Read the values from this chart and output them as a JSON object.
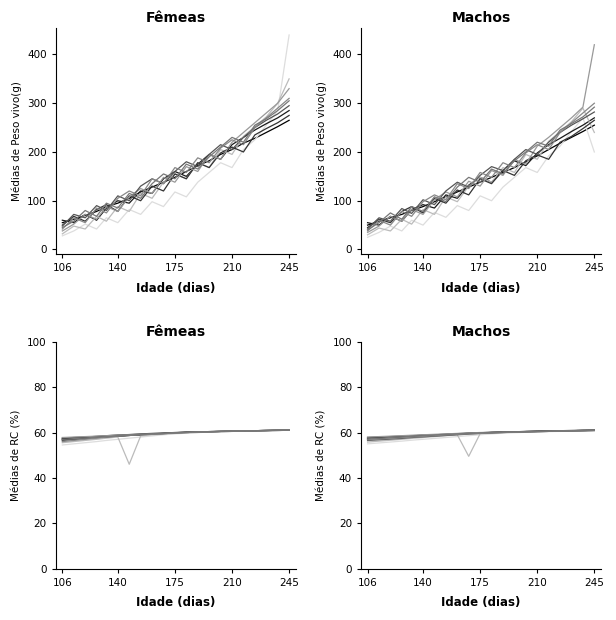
{
  "x_ticks": [
    106,
    140,
    175,
    210,
    245
  ],
  "titles_top": [
    "Fêmeas",
    "Machos"
  ],
  "titles_bottom": [
    "Fêmeas",
    "Machos"
  ],
  "ylabel_weight": "Médias de Peso vivo(g)",
  "ylabel_rc": "Médias de RC (%)",
  "xlabel": "Idade (dias)",
  "weight_yticks": [
    0,
    100,
    200,
    300,
    400
  ],
  "rc_yticks": [
    0,
    20,
    40,
    60,
    80,
    100
  ],
  "x_pts": [
    106,
    113,
    120,
    127,
    133,
    140,
    147,
    154,
    161,
    168,
    175,
    182,
    189,
    196,
    203,
    210,
    217,
    224,
    231,
    238,
    245
  ],
  "femeas_weight": [
    [
      55,
      62,
      70,
      78,
      88,
      95,
      105,
      118,
      128,
      138,
      148,
      160,
      172,
      182,
      195,
      205,
      218,
      228,
      240,
      252,
      265
    ],
    [
      60,
      55,
      72,
      60,
      85,
      100,
      95,
      120,
      115,
      145,
      160,
      150,
      175,
      195,
      185,
      215,
      230,
      245,
      258,
      270,
      285
    ],
    [
      50,
      68,
      58,
      82,
      92,
      78,
      110,
      100,
      130,
      120,
      155,
      145,
      178,
      168,
      198,
      210,
      200,
      235,
      248,
      260,
      275
    ],
    [
      48,
      72,
      65,
      90,
      80,
      110,
      100,
      130,
      145,
      135,
      160,
      180,
      170,
      195,
      215,
      205,
      230,
      250,
      265,
      278,
      295
    ],
    [
      45,
      58,
      80,
      68,
      95,
      85,
      115,
      105,
      135,
      155,
      145,
      175,
      165,
      190,
      210,
      230,
      220,
      255,
      268,
      285,
      305
    ],
    [
      42,
      65,
      55,
      85,
      75,
      105,
      120,
      110,
      145,
      135,
      168,
      158,
      188,
      178,
      208,
      225,
      215,
      250,
      270,
      290,
      310
    ],
    [
      38,
      52,
      72,
      62,
      88,
      78,
      108,
      125,
      115,
      148,
      138,
      170,
      160,
      195,
      185,
      220,
      240,
      260,
      280,
      300,
      330
    ],
    [
      32,
      48,
      42,
      68,
      58,
      88,
      78,
      115,
      105,
      138,
      155,
      145,
      178,
      168,
      205,
      195,
      232,
      252,
      272,
      300,
      350
    ],
    [
      28,
      38,
      52,
      42,
      65,
      55,
      82,
      72,
      98,
      88,
      118,
      108,
      138,
      158,
      178,
      168,
      205,
      225,
      255,
      285,
      440
    ]
  ],
  "machos_weight": [
    [
      50,
      58,
      65,
      72,
      80,
      88,
      98,
      108,
      118,
      128,
      138,
      148,
      158,
      168,
      180,
      192,
      205,
      218,
      230,
      242,
      255
    ],
    [
      55,
      50,
      68,
      58,
      82,
      92,
      85,
      112,
      105,
      132,
      148,
      138,
      162,
      182,
      172,
      198,
      215,
      228,
      242,
      255,
      270
    ],
    [
      45,
      62,
      55,
      78,
      88,
      75,
      105,
      95,
      122,
      112,
      145,
      135,
      162,
      152,
      182,
      194,
      185,
      220,
      232,
      248,
      265
    ],
    [
      42,
      65,
      58,
      84,
      74,
      102,
      92,
      120,
      138,
      128,
      152,
      170,
      162,
      185,
      205,
      195,
      220,
      240,
      255,
      268,
      282
    ],
    [
      40,
      55,
      75,
      62,
      88,
      78,
      108,
      98,
      128,
      148,
      138,
      165,
      155,
      182,
      200,
      220,
      212,
      245,
      258,
      272,
      292
    ],
    [
      38,
      60,
      50,
      78,
      68,
      98,
      112,
      102,
      135,
      125,
      158,
      148,
      178,
      168,
      198,
      215,
      205,
      240,
      260,
      280,
      300
    ],
    [
      35,
      48,
      68,
      58,
      82,
      72,
      102,
      118,
      108,
      140,
      130,
      162,
      152,
      185,
      175,
      212,
      230,
      250,
      270,
      292,
      420
    ],
    [
      30,
      44,
      38,
      62,
      52,
      82,
      72,
      108,
      98,
      130,
      148,
      138,
      168,
      158,
      195,
      185,
      222,
      242,
      262,
      290,
      240
    ],
    [
      25,
      35,
      48,
      38,
      60,
      50,
      76,
      66,
      90,
      80,
      110,
      100,
      128,
      148,
      168,
      158,
      192,
      212,
      242,
      270,
      200
    ]
  ],
  "femeas_rc": [
    [
      57.2,
      57.5,
      57.8,
      58.0,
      58.2,
      58.5,
      58.8,
      59.0,
      59.2,
      59.5,
      59.8,
      60.0,
      60.2,
      60.3,
      60.4,
      60.5,
      60.6,
      60.7,
      60.8,
      60.9,
      61.0
    ],
    [
      56.8,
      57.2,
      57.5,
      57.8,
      58.0,
      58.4,
      58.7,
      59.0,
      59.3,
      59.6,
      59.9,
      60.1,
      60.3,
      60.4,
      60.5,
      60.6,
      60.7,
      60.8,
      60.9,
      61.0,
      61.0
    ],
    [
      57.5,
      57.8,
      58.0,
      58.3,
      58.6,
      58.9,
      59.1,
      59.4,
      59.6,
      59.8,
      60.0,
      60.2,
      60.3,
      60.4,
      60.5,
      60.6,
      60.7,
      60.8,
      60.9,
      61.0,
      61.0
    ],
    [
      56.5,
      56.9,
      57.3,
      57.7,
      58.0,
      58.4,
      58.7,
      59.0,
      59.3,
      59.5,
      59.8,
      60.0,
      60.2,
      60.3,
      60.5,
      60.6,
      60.7,
      60.8,
      60.9,
      61.0,
      61.0
    ],
    [
      57.0,
      57.3,
      57.6,
      57.9,
      58.2,
      58.5,
      58.8,
      59.1,
      59.4,
      59.6,
      59.9,
      60.1,
      60.3,
      60.4,
      60.5,
      60.6,
      60.7,
      60.8,
      60.9,
      61.0,
      61.0
    ],
    [
      56.0,
      56.5,
      57.0,
      57.5,
      58.0,
      58.4,
      58.7,
      59.0,
      59.2,
      59.5,
      59.8,
      60.0,
      60.2,
      60.3,
      60.5,
      60.6,
      60.7,
      60.8,
      60.9,
      61.0,
      61.0
    ],
    [
      57.8,
      58.0,
      58.2,
      58.4,
      58.6,
      58.8,
      59.0,
      59.2,
      59.4,
      59.6,
      59.8,
      60.0,
      60.2,
      60.3,
      60.5,
      60.6,
      60.7,
      60.8,
      60.9,
      61.0,
      61.0
    ],
    [
      55.5,
      56.0,
      56.5,
      57.0,
      57.5,
      58.0,
      46.0,
      58.5,
      59.0,
      59.3,
      59.6,
      59.8,
      60.0,
      60.2,
      60.4,
      60.5,
      60.6,
      60.7,
      60.8,
      60.9,
      61.0
    ],
    [
      54.5,
      55.0,
      55.5,
      56.0,
      56.5,
      57.0,
      57.5,
      58.0,
      58.5,
      59.0,
      59.4,
      59.7,
      60.0,
      60.2,
      60.4,
      60.5,
      60.6,
      60.7,
      60.8,
      60.9,
      61.0
    ]
  ],
  "machos_rc": [
    [
      57.5,
      57.8,
      58.0,
      58.2,
      58.5,
      58.8,
      59.0,
      59.2,
      59.5,
      59.7,
      59.9,
      60.1,
      60.2,
      60.3,
      60.4,
      60.5,
      60.6,
      60.7,
      60.8,
      60.9,
      61.0
    ],
    [
      57.0,
      57.3,
      57.6,
      57.9,
      58.2,
      58.5,
      58.8,
      59.1,
      59.4,
      59.6,
      59.8,
      60.0,
      60.2,
      60.3,
      60.5,
      60.6,
      60.7,
      60.8,
      60.9,
      61.0,
      61.0
    ],
    [
      57.8,
      58.0,
      58.2,
      58.4,
      58.6,
      58.8,
      59.0,
      59.2,
      59.4,
      59.6,
      59.8,
      60.0,
      60.2,
      60.3,
      60.4,
      60.5,
      60.6,
      60.7,
      60.8,
      60.9,
      61.0
    ],
    [
      56.5,
      56.8,
      57.1,
      57.4,
      57.8,
      58.1,
      58.4,
      58.7,
      59.0,
      59.3,
      59.6,
      59.8,
      60.0,
      60.2,
      60.3,
      60.4,
      60.5,
      60.6,
      60.7,
      60.8,
      60.9
    ],
    [
      57.2,
      57.5,
      57.8,
      58.1,
      58.3,
      58.6,
      58.9,
      59.1,
      59.4,
      59.6,
      59.8,
      60.0,
      60.1,
      60.2,
      60.3,
      60.4,
      60.5,
      60.6,
      60.7,
      60.8,
      60.9
    ],
    [
      56.8,
      57.1,
      57.4,
      57.7,
      58.0,
      58.3,
      58.6,
      58.9,
      59.2,
      59.4,
      59.6,
      59.8,
      60.0,
      60.1,
      60.3,
      60.4,
      60.5,
      60.6,
      60.7,
      60.8,
      60.9
    ],
    [
      58.0,
      58.2,
      58.4,
      58.6,
      58.8,
      59.0,
      59.2,
      59.4,
      59.6,
      59.8,
      60.0,
      60.1,
      60.2,
      60.3,
      60.4,
      60.5,
      60.6,
      60.7,
      60.8,
      60.9,
      61.0
    ],
    [
      55.8,
      56.2,
      56.6,
      57.0,
      57.4,
      57.8,
      58.2,
      58.6,
      59.0,
      49.5,
      59.5,
      59.8,
      60.0,
      60.2,
      60.3,
      60.4,
      60.5,
      60.6,
      60.7,
      60.8,
      60.9
    ],
    [
      55.0,
      55.4,
      55.8,
      56.2,
      56.6,
      57.0,
      57.4,
      57.8,
      58.2,
      58.6,
      59.0,
      59.4,
      59.7,
      59.9,
      60.1,
      60.3,
      60.4,
      60.5,
      60.6,
      60.7,
      60.8
    ]
  ],
  "line_colors": [
    "#000000",
    "#1a1a1a",
    "#333333",
    "#555555",
    "#777777",
    "#888888",
    "#999999",
    "#bbbbbb",
    "#dddddd"
  ],
  "bg_color": "#ffffff"
}
